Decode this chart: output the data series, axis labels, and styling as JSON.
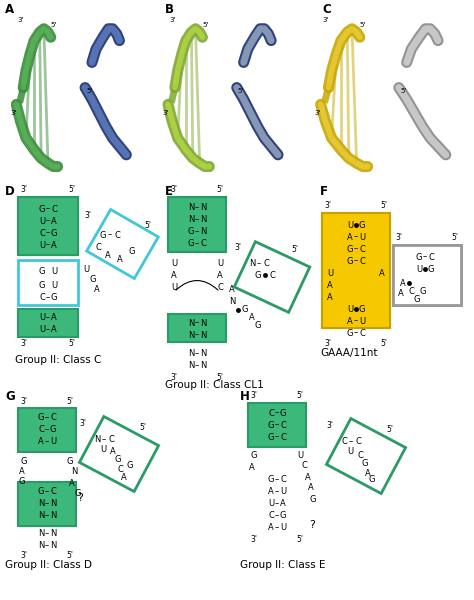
{
  "panel_labels": [
    "A",
    "B",
    "C",
    "D",
    "E",
    "F",
    "G",
    "H"
  ],
  "bottom_labels": [
    "Group II: Class C",
    "Group II: Class CL1",
    "GAAA/11nt",
    "Group II: Class D",
    "Group II: Class E"
  ],
  "green_fill": "#3CB87A",
  "green_edge": "#2A9A66",
  "cyan_edge": "#40C0D0",
  "yellow_fill": "#F5C800",
  "yellow_edge": "#D4A800",
  "gray_edge": "#999999",
  "white": "#FFFFFF"
}
